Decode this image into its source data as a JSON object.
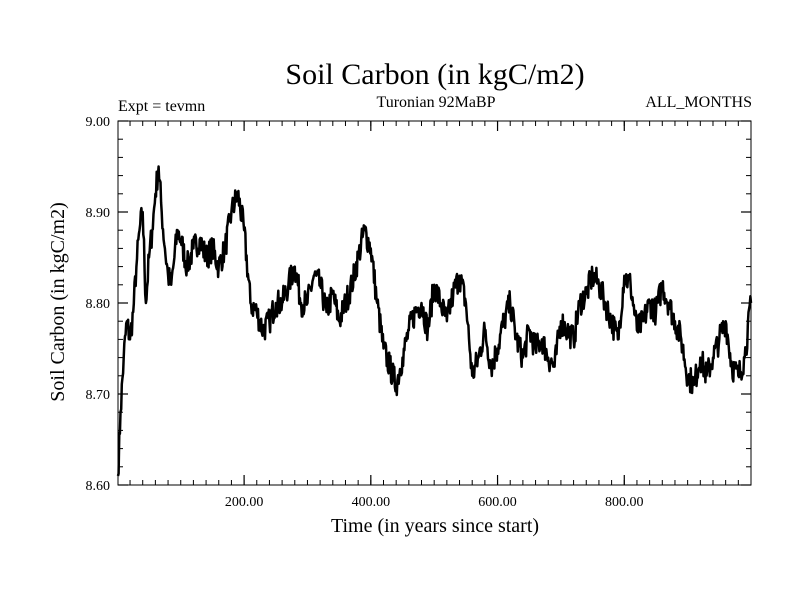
{
  "chart_data": {
    "type": "line",
    "title": "Soil Carbon (in kgC/m2)",
    "subtitle_left": "Expt = tevmn",
    "subtitle_center": "Turonian  92MaBP",
    "subtitle_right": "ALL_MONTHS",
    "xlabel": "Time (in years since start)",
    "ylabel": "Soil Carbon (in kgC/m2)",
    "xlim": [
      1,
      1000
    ],
    "ylim": [
      8.6,
      9.0
    ],
    "x_ticks": [
      200,
      400,
      600,
      800
    ],
    "x_tick_labels": [
      "200.00",
      "400.00",
      "600.00",
      "800.00"
    ],
    "y_ticks": [
      8.6,
      8.7,
      8.8,
      8.9,
      9.0
    ],
    "y_tick_labels": [
      "8.60",
      "8.70",
      "8.80",
      "8.90",
      "9.00"
    ],
    "series": [
      {
        "name": "Soil Carbon",
        "color": "#000000",
        "x": [
          1,
          5,
          10,
          15,
          20,
          25,
          30,
          35,
          40,
          45,
          50,
          55,
          60,
          65,
          70,
          75,
          80,
          85,
          90,
          95,
          100,
          110,
          120,
          130,
          140,
          150,
          160,
          170,
          180,
          190,
          200,
          210,
          220,
          230,
          240,
          250,
          260,
          270,
          280,
          290,
          300,
          310,
          320,
          330,
          340,
          350,
          360,
          370,
          380,
          390,
          400,
          410,
          420,
          430,
          440,
          450,
          460,
          470,
          480,
          490,
          500,
          510,
          520,
          530,
          540,
          550,
          560,
          570,
          580,
          590,
          600,
          610,
          620,
          630,
          640,
          650,
          660,
          670,
          680,
          690,
          700,
          710,
          720,
          730,
          740,
          750,
          760,
          770,
          780,
          790,
          800,
          810,
          820,
          830,
          840,
          850,
          860,
          870,
          880,
          890,
          900,
          910,
          920,
          930,
          940,
          950,
          960,
          970,
          980,
          990,
          1000
        ],
        "values": [
          8.61,
          8.68,
          8.74,
          8.78,
          8.76,
          8.79,
          8.84,
          8.88,
          8.9,
          8.8,
          8.85,
          8.88,
          8.92,
          8.95,
          8.9,
          8.86,
          8.83,
          8.82,
          8.85,
          8.88,
          8.87,
          8.84,
          8.86,
          8.87,
          8.85,
          8.86,
          8.84,
          8.86,
          8.9,
          8.92,
          8.88,
          8.8,
          8.79,
          8.77,
          8.78,
          8.8,
          8.8,
          8.82,
          8.84,
          8.8,
          8.8,
          8.83,
          8.82,
          8.79,
          8.81,
          8.78,
          8.8,
          8.82,
          8.85,
          8.88,
          8.86,
          8.8,
          8.75,
          8.73,
          8.71,
          8.74,
          8.77,
          8.79,
          8.8,
          8.77,
          8.82,
          8.8,
          8.78,
          8.81,
          8.83,
          8.8,
          8.72,
          8.74,
          8.77,
          8.73,
          8.75,
          8.78,
          8.8,
          8.76,
          8.74,
          8.77,
          8.75,
          8.76,
          8.74,
          8.73,
          8.78,
          8.77,
          8.76,
          8.8,
          8.81,
          8.83,
          8.82,
          8.8,
          8.78,
          8.76,
          8.83,
          8.82,
          8.77,
          8.78,
          8.8,
          8.79,
          8.82,
          8.8,
          8.78,
          8.76,
          8.72,
          8.71,
          8.74,
          8.72,
          8.74,
          8.76,
          8.78,
          8.73,
          8.72,
          8.74,
          8.8
        ]
      }
    ]
  }
}
